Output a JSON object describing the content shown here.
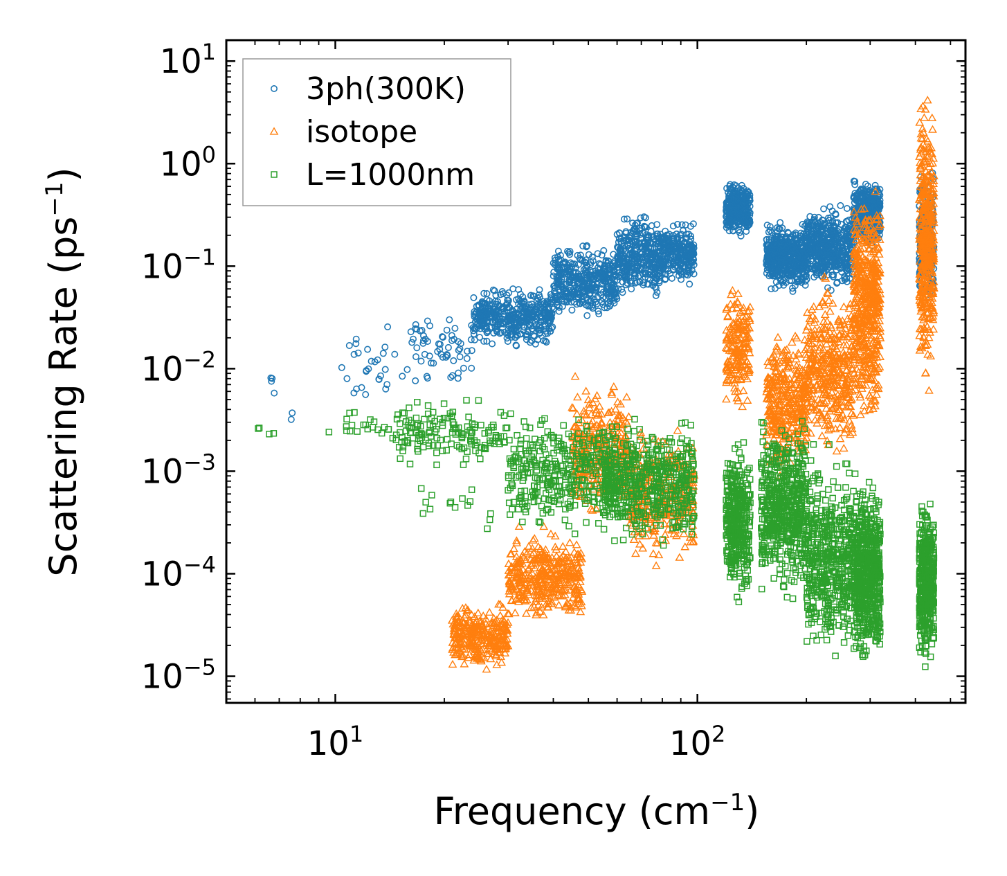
{
  "chart_data": {
    "type": "scatter",
    "title": "",
    "xlabel": "Frequency (cm",
    "xlabel_sup": "−1",
    "xlabel_end": ")",
    "ylabel": "Scattering Rate (ps",
    "ylabel_sup": "−1",
    "ylabel_end": ")",
    "xscale": "log",
    "yscale": "log",
    "xlim": [
      5,
      550
    ],
    "ylim": [
      5.5e-06,
      16
    ],
    "x_ticks": [
      {
        "value": 10,
        "base": "10",
        "exp": "1"
      },
      {
        "value": 100,
        "base": "10",
        "exp": "2"
      }
    ],
    "y_ticks": [
      {
        "value": 10,
        "base": "10",
        "exp": "1"
      },
      {
        "value": 1,
        "base": "10",
        "exp": "0"
      },
      {
        "value": 0.1,
        "base": "10",
        "exp": "−1"
      },
      {
        "value": 0.01,
        "base": "10",
        "exp": "−2"
      },
      {
        "value": 0.001,
        "base": "10",
        "exp": "−3"
      },
      {
        "value": 0.0001,
        "base": "10",
        "exp": "−4"
      },
      {
        "value": 1e-05,
        "base": "10",
        "exp": "−5"
      }
    ],
    "legend_position": "top-left",
    "series": [
      {
        "name": "3ph(300K)",
        "marker": "circle",
        "color": "#1f77b4",
        "clusters": [
          [
            6,
            7,
            0.004,
            0.012,
            4
          ],
          [
            7.5,
            8,
            0.0025,
            0.004,
            2
          ],
          [
            10,
            16,
            0.003,
            0.035,
            30
          ],
          [
            16,
            24,
            0.006,
            0.04,
            60
          ],
          [
            24,
            40,
            0.015,
            0.07,
            420
          ],
          [
            40,
            60,
            0.025,
            0.18,
            400
          ],
          [
            60,
            80,
            0.04,
            0.4,
            350
          ],
          [
            80,
            98,
            0.06,
            0.3,
            250
          ],
          [
            120,
            140,
            0.18,
            0.75,
            300
          ],
          [
            155,
            200,
            0.05,
            0.3,
            500
          ],
          [
            200,
            270,
            0.05,
            0.45,
            500
          ],
          [
            270,
            320,
            0.15,
            0.75,
            400
          ],
          [
            410,
            450,
            0.03,
            1.0,
            250
          ]
        ]
      },
      {
        "name": "isotope",
        "marker": "triangle",
        "color": "#ff7f0e",
        "clusters": [
          [
            21,
            30,
            1e-05,
            6e-05,
            300
          ],
          [
            30,
            48,
            3e-05,
            0.0003,
            400
          ],
          [
            45,
            65,
            0.0003,
            0.01,
            300
          ],
          [
            65,
            98,
            0.0001,
            0.003,
            300
          ],
          [
            120,
            140,
            0.003,
            0.08,
            180
          ],
          [
            155,
            200,
            0.0008,
            0.03,
            350
          ],
          [
            200,
            270,
            0.001,
            0.1,
            400
          ],
          [
            270,
            320,
            0.002,
            0.9,
            500
          ],
          [
            410,
            450,
            0.004,
            8.0,
            400
          ]
        ]
      },
      {
        "name": "L=1000nm",
        "marker": "square",
        "color": "#2ca02c",
        "clusters": [
          [
            6,
            7,
            0.002,
            0.003,
            4
          ],
          [
            9.5,
            15,
            0.0018,
            0.0045,
            25
          ],
          [
            15,
            30,
            0.0009,
            0.006,
            150
          ],
          [
            17,
            30,
            0.0002,
            0.0009,
            15
          ],
          [
            30,
            60,
            0.0002,
            0.005,
            350
          ],
          [
            55,
            98,
            0.00015,
            0.004,
            500
          ],
          [
            120,
            140,
            4e-05,
            0.0025,
            400
          ],
          [
            150,
            200,
            5e-05,
            0.004,
            550
          ],
          [
            200,
            270,
            1e-05,
            0.002,
            500
          ],
          [
            270,
            320,
            1e-05,
            0.0012,
            600
          ],
          [
            410,
            450,
            1e-05,
            0.0006,
            450
          ]
        ]
      }
    ]
  }
}
